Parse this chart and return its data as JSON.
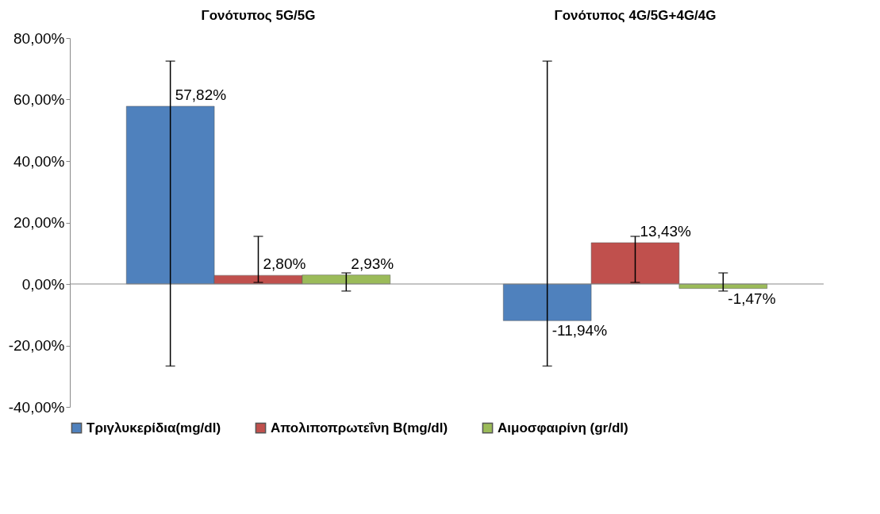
{
  "chart_data": {
    "type": "bar",
    "categories": [
      "Γονότυπος 5G/5G",
      "Γονότυπος 4G/5G+4G/4G"
    ],
    "series": [
      {
        "name": "Τριγλυκερίδια(mg/dl)",
        "color": "#4f81bd",
        "values": [
          57.82,
          -11.94
        ],
        "value_labels": [
          "57,82%",
          "-11,94%"
        ],
        "errors": [
          [
            -26.7,
            72.5
          ],
          [
            -26.7,
            72.5
          ]
        ]
      },
      {
        "name": "Απολιποπρωτεΐνη Β(mg/dl)",
        "color": "#c0504d",
        "values": [
          2.8,
          13.43
        ],
        "value_labels": [
          "2,80%",
          "13,43%"
        ],
        "errors": [
          [
            0.5,
            15.5
          ],
          [
            0.5,
            15.5
          ]
        ]
      },
      {
        "name": "Αιμοσφαιρίνη (gr/dl)",
        "color": "#9bbb59",
        "values": [
          2.93,
          -1.47
        ],
        "value_labels": [
          "2,93%",
          "-1,47%"
        ],
        "errors": [
          [
            -2.3,
            3.6
          ],
          [
            -2.3,
            3.6
          ]
        ]
      }
    ],
    "ylim": [
      -40,
      80
    ],
    "yticks": [
      {
        "value": -40,
        "label": "-40,00%"
      },
      {
        "value": -20,
        "label": "-20,00%"
      },
      {
        "value": 0,
        "label": "0,00%"
      },
      {
        "value": 20,
        "label": "20,00%"
      },
      {
        "value": 40,
        "label": "40,00%"
      },
      {
        "value": 60,
        "label": "60,00%"
      },
      {
        "value": 80,
        "label": "80,00%"
      }
    ],
    "grid": false,
    "ref_lines": [
      {
        "axis": "y",
        "value": 0,
        "color": "#888888"
      }
    ],
    "legend": "bottom"
  }
}
